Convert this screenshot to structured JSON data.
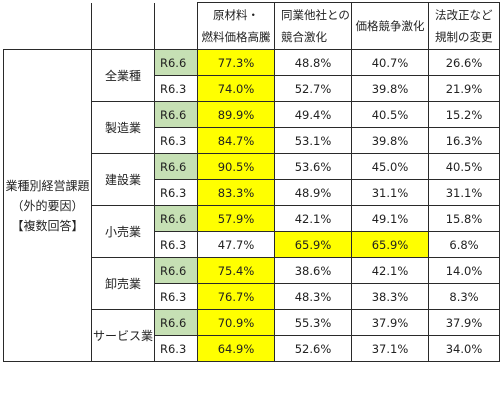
{
  "table": {
    "headers": [
      "原材料・燃料価格高騰",
      "同業他社との競合激化",
      "価格競争激化",
      "法改正など規制の変更"
    ],
    "header_lines": [
      [
        "原材料・",
        "燃料価格高騰"
      ],
      [
        "同業他社との",
        "競合激化"
      ],
      [
        "価格競争激化"
      ],
      [
        "法改正など",
        "規制の変更"
      ]
    ],
    "side_label_lines": [
      "業種別経営課題",
      "（外的要因）",
      "【複数回答】"
    ],
    "highlight_color": "#ffff00",
    "current_year_color": "#c6e0b4",
    "industries": [
      {
        "name": "全業種",
        "rows": [
          {
            "year": "R6.6",
            "values": [
              "77.3%",
              "48.8%",
              "40.7%",
              "26.6%"
            ],
            "highlight": [
              true,
              false,
              false,
              false
            ]
          },
          {
            "year": "R6.3",
            "values": [
              "74.0%",
              "52.7%",
              "39.8%",
              "21.9%"
            ],
            "highlight": [
              true,
              false,
              false,
              false
            ]
          }
        ]
      },
      {
        "name": "製造業",
        "rows": [
          {
            "year": "R6.6",
            "values": [
              "89.9%",
              "49.4%",
              "40.5%",
              "15.2%"
            ],
            "highlight": [
              true,
              false,
              false,
              false
            ]
          },
          {
            "year": "R6.3",
            "values": [
              "84.7%",
              "53.1%",
              "39.8%",
              "16.3%"
            ],
            "highlight": [
              true,
              false,
              false,
              false
            ]
          }
        ]
      },
      {
        "name": "建設業",
        "rows": [
          {
            "year": "R6.6",
            "values": [
              "90.5%",
              "53.6%",
              "45.0%",
              "40.5%"
            ],
            "highlight": [
              true,
              false,
              false,
              false
            ]
          },
          {
            "year": "R6.3",
            "values": [
              "83.3%",
              "48.9%",
              "31.1%",
              "31.1%"
            ],
            "highlight": [
              true,
              false,
              false,
              false
            ]
          }
        ]
      },
      {
        "name": "小売業",
        "rows": [
          {
            "year": "R6.6",
            "values": [
              "57.9%",
              "42.1%",
              "49.1%",
              "15.8%"
            ],
            "highlight": [
              true,
              false,
              false,
              false
            ]
          },
          {
            "year": "R6.3",
            "values": [
              "47.7%",
              "65.9%",
              "65.9%",
              "6.8%"
            ],
            "highlight": [
              false,
              true,
              true,
              false
            ]
          }
        ]
      },
      {
        "name": "卸売業",
        "rows": [
          {
            "year": "R6.6",
            "values": [
              "75.4%",
              "38.6%",
              "42.1%",
              "14.0%"
            ],
            "highlight": [
              true,
              false,
              false,
              false
            ]
          },
          {
            "year": "R6.3",
            "values": [
              "76.7%",
              "48.3%",
              "38.3%",
              "8.3%"
            ],
            "highlight": [
              true,
              false,
              false,
              false
            ]
          }
        ]
      },
      {
        "name": "サービス業",
        "rows": [
          {
            "year": "R6.6",
            "values": [
              "70.9%",
              "55.3%",
              "37.9%",
              "37.9%"
            ],
            "highlight": [
              true,
              false,
              false,
              false
            ]
          },
          {
            "year": "R6.3",
            "values": [
              "64.9%",
              "52.6%",
              "37.1%",
              "34.0%"
            ],
            "highlight": [
              true,
              false,
              false,
              false
            ]
          }
        ]
      }
    ]
  }
}
